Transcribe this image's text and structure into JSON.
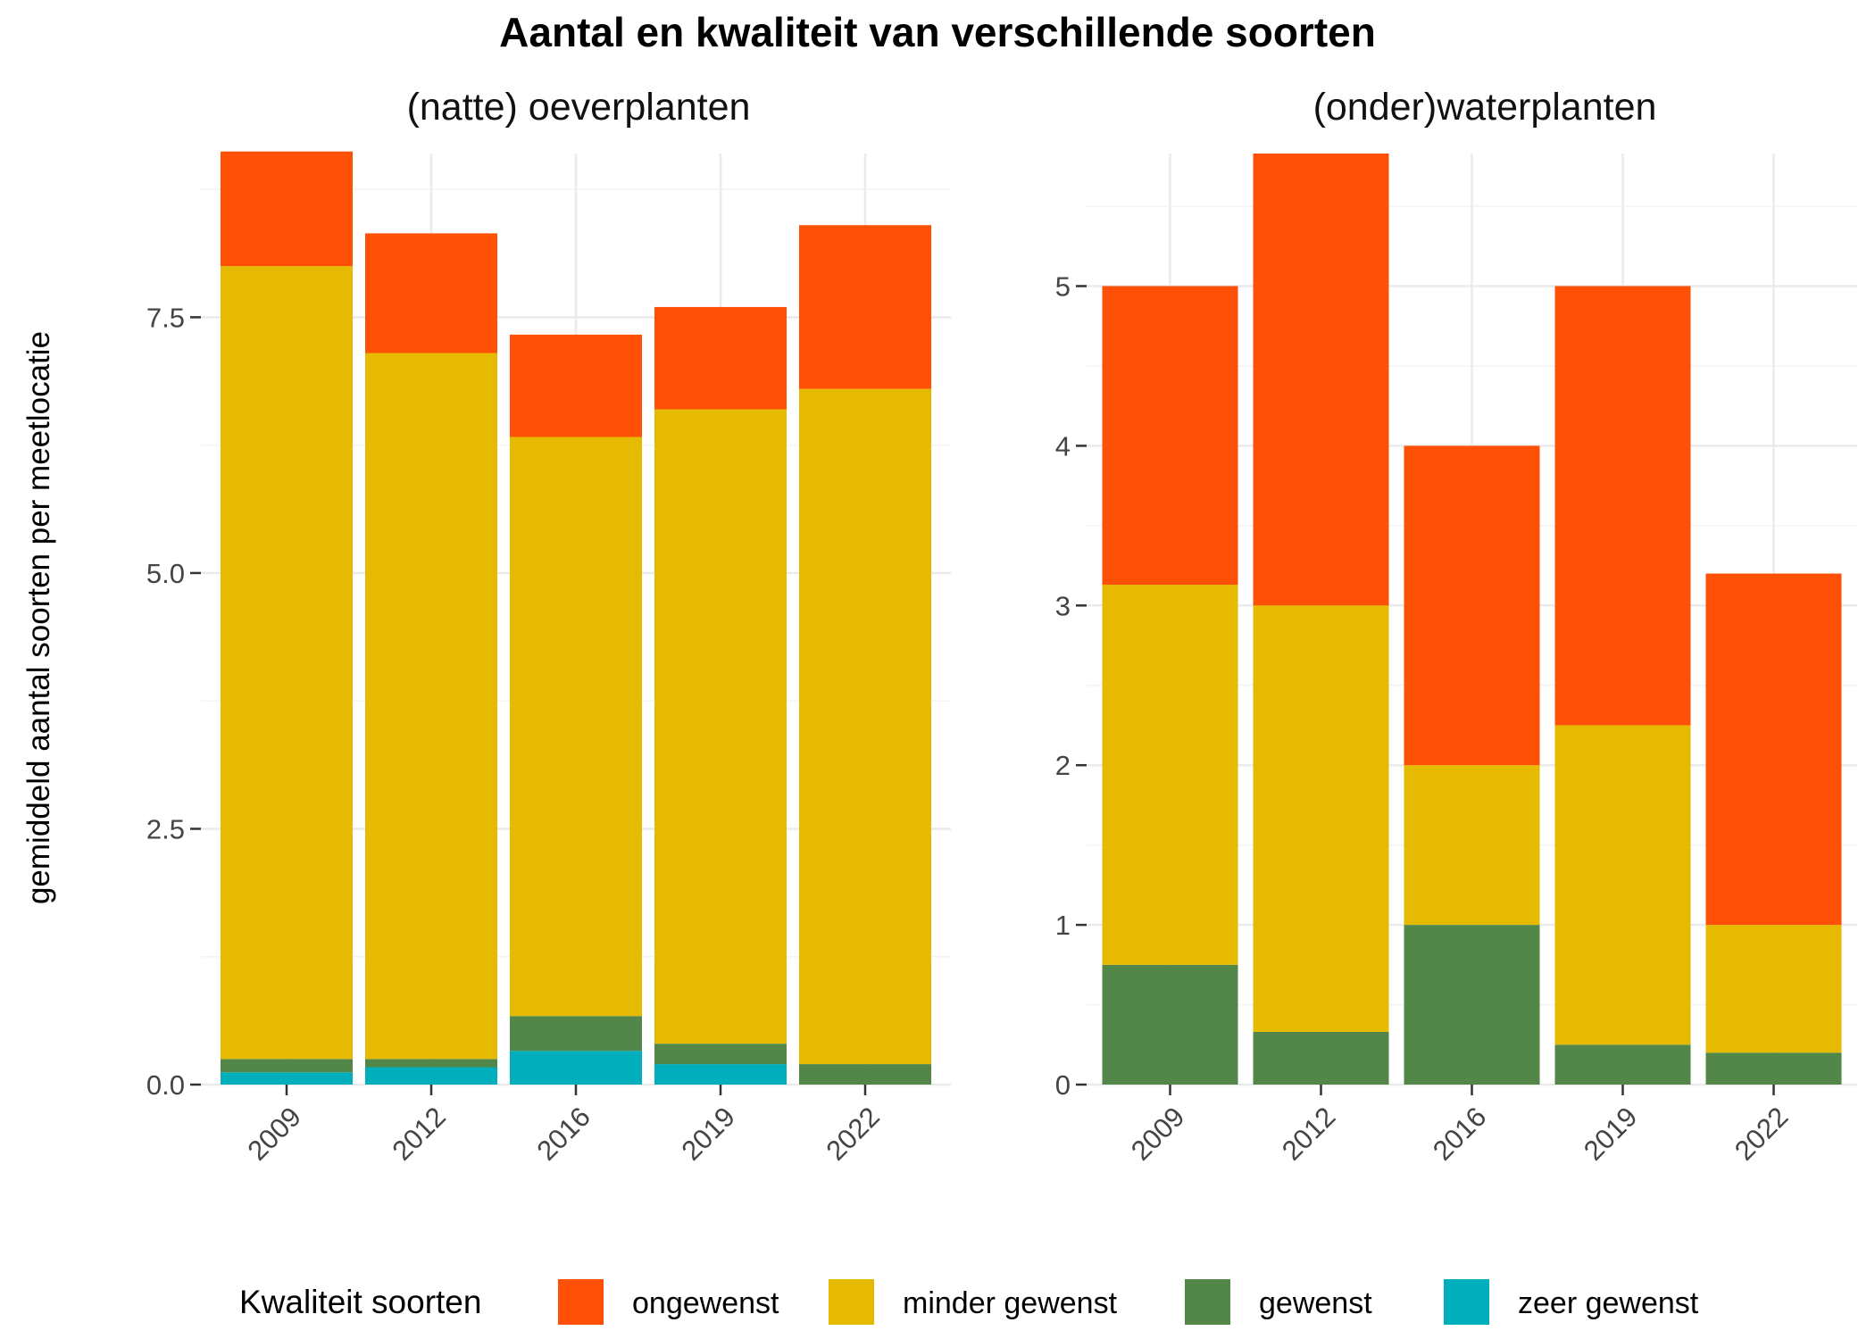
{
  "title": "Aantal en kwaliteit van verschillende soorten",
  "ylabel": "gemiddeld aantal soorten per meetlocatie",
  "legend": {
    "title": "Kwaliteit soorten",
    "placement": "bottom",
    "items": [
      {
        "label": "ongewenst",
        "color": "#FF5008"
      },
      {
        "label": "minder gewenst",
        "color": "#E6BA00"
      },
      {
        "label": "gewenst",
        "color": "#538749"
      },
      {
        "label": "zeer gewenst",
        "color": "#00AFBB"
      }
    ]
  },
  "chart_data": [
    {
      "type": "bar",
      "stacked": true,
      "title": "(natte) oeverplanten",
      "categories": [
        "2009",
        "2012",
        "2016",
        "2019",
        "2022"
      ],
      "ylim": [
        0,
        9.1
      ],
      "yticks": [
        "0.0",
        "2.5",
        "5.0",
        "7.5"
      ],
      "ytick_values": [
        0,
        2.5,
        5,
        7.5
      ],
      "grid": true,
      "series": [
        {
          "name": "zeer gewenst",
          "values": [
            0.12,
            0.17,
            0.33,
            0.2,
            0.0
          ]
        },
        {
          "name": "gewenst",
          "values": [
            0.13,
            0.08,
            0.34,
            0.2,
            0.2
          ]
        },
        {
          "name": "minder gewenst",
          "values": [
            7.75,
            6.9,
            5.66,
            6.2,
            6.6
          ]
        },
        {
          "name": "ongewenst",
          "values": [
            1.12,
            1.17,
            1.0,
            1.0,
            1.6
          ]
        }
      ]
    },
    {
      "type": "bar",
      "stacked": true,
      "title": "(onder)waterplanten",
      "categories": [
        "2009",
        "2012",
        "2016",
        "2019",
        "2022"
      ],
      "ylim": [
        0,
        5.83
      ],
      "yticks": [
        "0",
        "1",
        "2",
        "3",
        "4",
        "5"
      ],
      "ytick_values": [
        0,
        1,
        2,
        3,
        4,
        5
      ],
      "grid": true,
      "series": [
        {
          "name": "zeer gewenst",
          "values": [
            0,
            0,
            0,
            0,
            0
          ]
        },
        {
          "name": "gewenst",
          "values": [
            0.75,
            0.33,
            1.0,
            0.25,
            0.2
          ]
        },
        {
          "name": "minder gewenst",
          "values": [
            2.38,
            2.67,
            1.0,
            2.0,
            0.8
          ]
        },
        {
          "name": "ongewenst",
          "values": [
            1.87,
            2.83,
            2.0,
            2.75,
            2.2
          ]
        }
      ]
    }
  ]
}
